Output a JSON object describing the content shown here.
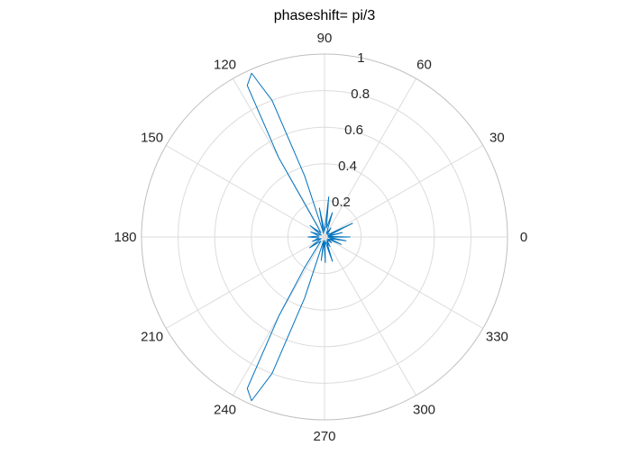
{
  "chart_data": {
    "type": "polar-line",
    "title": "phaseshift= pi/3",
    "theta_unit": "degrees",
    "theta_ticks": [
      "0",
      "30",
      "60",
      "90",
      "120",
      "150",
      "180",
      "210",
      "240",
      "270",
      "300",
      "330"
    ],
    "r_ticks": [
      "0.2",
      "0.4",
      "0.6",
      "0.8",
      "1"
    ],
    "rlim": [
      0,
      1
    ],
    "grid": true,
    "series_color": "#0072BD",
    "grid_color": "#DCDCDC",
    "series": [
      {
        "points": [
          [
            0,
            0.14
          ],
          [
            8,
            0.02
          ],
          [
            14,
            0.1
          ],
          [
            18,
            0.02
          ],
          [
            26,
            0.17
          ],
          [
            30,
            0.04
          ],
          [
            40,
            0.02
          ],
          [
            55,
            0.06
          ],
          [
            60,
            0.02
          ],
          [
            72,
            0.14
          ],
          [
            78,
            0.05
          ],
          [
            84,
            0.22
          ],
          [
            90,
            0.03
          ],
          [
            100,
            0.16
          ],
          [
            104,
            0.02
          ],
          [
            108,
            0.35
          ],
          [
            111,
            0.8
          ],
          [
            114,
            0.98
          ],
          [
            117,
            0.93
          ],
          [
            120,
            0.5
          ],
          [
            123,
            0.08
          ],
          [
            132,
            0.03
          ],
          [
            142,
            0.1
          ],
          [
            150,
            0.02
          ],
          [
            160,
            0.08
          ],
          [
            170,
            0.03
          ],
          [
            180,
            0.09
          ],
          [
            190,
            0.03
          ],
          [
            200,
            0.07
          ],
          [
            206,
            0.02
          ],
          [
            216,
            0.1
          ],
          [
            228,
            0.03
          ],
          [
            237,
            0.2
          ],
          [
            240,
            0.5
          ],
          [
            243,
            0.93
          ],
          [
            246,
            0.98
          ],
          [
            249,
            0.8
          ],
          [
            252,
            0.35
          ],
          [
            256,
            0.02
          ],
          [
            262,
            0.13
          ],
          [
            266,
            0.03
          ],
          [
            272,
            0.14
          ],
          [
            276,
            0.02
          ],
          [
            288,
            0.14
          ],
          [
            294,
            0.03
          ],
          [
            300,
            0.06
          ],
          [
            310,
            0.02
          ],
          [
            320,
            0.05
          ],
          [
            330,
            0.02
          ],
          [
            336,
            0.1
          ],
          [
            342,
            0.03
          ],
          [
            350,
            0.12
          ],
          [
            356,
            0.02
          ],
          [
            360,
            0.14
          ]
        ]
      }
    ]
  }
}
